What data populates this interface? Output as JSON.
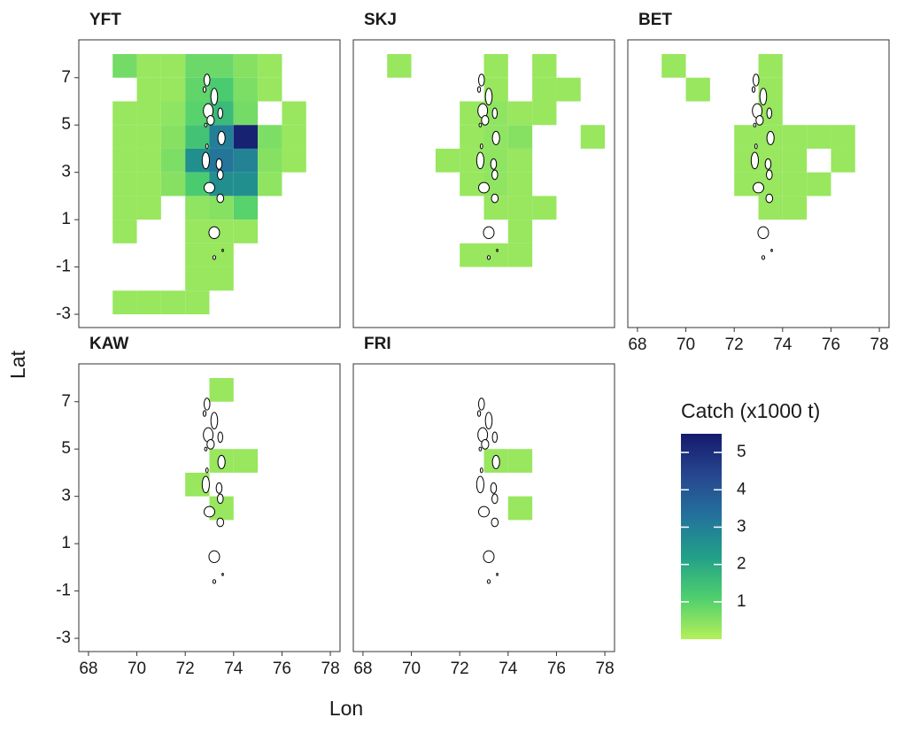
{
  "chart_data": [
    {
      "type": "heatmap",
      "title": "YFT",
      "x": [
        69,
        70,
        71,
        72,
        73,
        74,
        75,
        70,
        71,
        72,
        73,
        74,
        75,
        69,
        70,
        71,
        72,
        73,
        74,
        76,
        69,
        70,
        71,
        72,
        73,
        74,
        75,
        76,
        69,
        70,
        71,
        72,
        73,
        74,
        75,
        76,
        69,
        70,
        71,
        72,
        73,
        74,
        75,
        69,
        70,
        72,
        73,
        74,
        69,
        72,
        73,
        74,
        72,
        73,
        72,
        73,
        69,
        70,
        71,
        72
      ],
      "y": [
        7,
        7,
        7,
        7,
        7,
        7,
        7,
        6,
        6,
        6,
        6,
        6,
        6,
        5,
        5,
        5,
        5,
        5,
        5,
        5,
        4,
        4,
        4,
        4,
        4,
        4,
        4,
        4,
        3,
        3,
        3,
        3,
        3,
        3,
        3,
        3,
        2,
        2,
        2,
        2,
        2,
        2,
        2,
        1,
        1,
        1,
        1,
        1,
        0,
        0,
        0,
        0,
        -1,
        -1,
        -2,
        -2,
        -3,
        -3,
        -3,
        -3
      ],
      "values": [
        0.7,
        0.3,
        0.3,
        0.8,
        0.8,
        0.5,
        0.3,
        0.3,
        0.3,
        0.9,
        1.2,
        0.6,
        0.3,
        0.3,
        0.3,
        0.4,
        1.0,
        1.6,
        0.7,
        0.3,
        0.3,
        0.3,
        0.5,
        1.4,
        3.0,
        5.3,
        0.6,
        0.3,
        0.3,
        0.3,
        0.6,
        2.6,
        3.2,
        2.9,
        0.5,
        0.3,
        0.3,
        0.3,
        0.5,
        1.2,
        2.6,
        2.6,
        0.4,
        0.3,
        0.3,
        0.4,
        0.5,
        1.0,
        0.3,
        0.3,
        0.3,
        0.3,
        0.3,
        0.3,
        0.3,
        0.3,
        0.3,
        0.3,
        0.3,
        0.3
      ],
      "xlim": [
        67.6,
        78.4
      ],
      "ylim": [
        -3.56,
        8.6
      ],
      "yticks": [
        -3,
        -1,
        1,
        3,
        5,
        7
      ]
    },
    {
      "type": "heatmap",
      "title": "SKJ",
      "x": [
        69,
        73,
        75,
        73,
        75,
        76,
        72,
        73,
        74,
        75,
        72,
        73,
        74,
        77,
        71,
        72,
        73,
        74,
        72,
        73,
        74,
        73,
        74,
        75,
        74,
        72,
        73,
        74
      ],
      "y": [
        7,
        7,
        7,
        6,
        6,
        6,
        5,
        5,
        5,
        5,
        4,
        4,
        4,
        4,
        3,
        3,
        3,
        3,
        2,
        2,
        2,
        1,
        1,
        1,
        0,
        -1,
        -1,
        -1
      ],
      "values": [
        0.3,
        0.3,
        0.3,
        0.3,
        0.3,
        0.3,
        0.3,
        0.4,
        0.3,
        0.3,
        0.3,
        0.4,
        0.5,
        0.3,
        0.3,
        0.3,
        0.4,
        0.3,
        0.3,
        0.4,
        0.3,
        0.3,
        0.3,
        0.3,
        0.3,
        0.3,
        0.3,
        0.3
      ],
      "xlim": [
        67.6,
        78.4
      ],
      "ylim": [
        -3.56,
        8.6
      ]
    },
    {
      "type": "heatmap",
      "title": "BET",
      "x": [
        69,
        73,
        70,
        73,
        73,
        72,
        73,
        74,
        75,
        76,
        72,
        73,
        74,
        76,
        72,
        73,
        74,
        75,
        73,
        74
      ],
      "y": [
        7,
        7,
        6,
        6,
        5,
        4,
        4,
        4,
        4,
        4,
        3,
        3,
        3,
        3,
        2,
        2,
        2,
        2,
        1,
        1
      ],
      "values": [
        0.3,
        0.3,
        0.3,
        0.3,
        0.3,
        0.3,
        0.3,
        0.3,
        0.3,
        0.3,
        0.3,
        0.3,
        0.3,
        0.3,
        0.3,
        0.3,
        0.3,
        0.3,
        0.3,
        0.3
      ],
      "xlim": [
        67.6,
        78.4
      ],
      "ylim": [
        -3.56,
        8.6
      ],
      "xticks": [
        68,
        70,
        72,
        74,
        76,
        78
      ]
    },
    {
      "type": "heatmap",
      "title": "KAW",
      "x": [
        73,
        73,
        74,
        72,
        73
      ],
      "y": [
        7,
        4,
        4,
        3,
        2
      ],
      "values": [
        0.3,
        0.3,
        0.3,
        0.3,
        0.3
      ],
      "xlim": [
        67.6,
        78.4
      ],
      "ylim": [
        -3.56,
        8.6
      ],
      "xticks": [
        68,
        70,
        72,
        74,
        76,
        78
      ],
      "yticks": [
        -3,
        -1,
        1,
        3,
        5,
        7
      ]
    },
    {
      "type": "heatmap",
      "title": "FRI",
      "x": [
        73,
        74,
        74
      ],
      "y": [
        4,
        4,
        2
      ],
      "values": [
        0.3,
        0.3,
        0.3
      ],
      "xlim": [
        67.6,
        78.4
      ],
      "ylim": [
        -3.56,
        8.6
      ],
      "xticks": [
        68,
        70,
        72,
        74,
        76,
        78
      ]
    }
  ],
  "x_label": "Lon",
  "y_label": "Lat",
  "colorbar": {
    "title": "Catch (x1000 t)",
    "lim": [
      0,
      5.5
    ],
    "ticks": [
      1,
      2,
      3,
      4,
      5
    ],
    "colors": [
      "#b4f05a",
      "#4fcf6e",
      "#22a088",
      "#23729c",
      "#27468f",
      "#141a6c"
    ]
  }
}
